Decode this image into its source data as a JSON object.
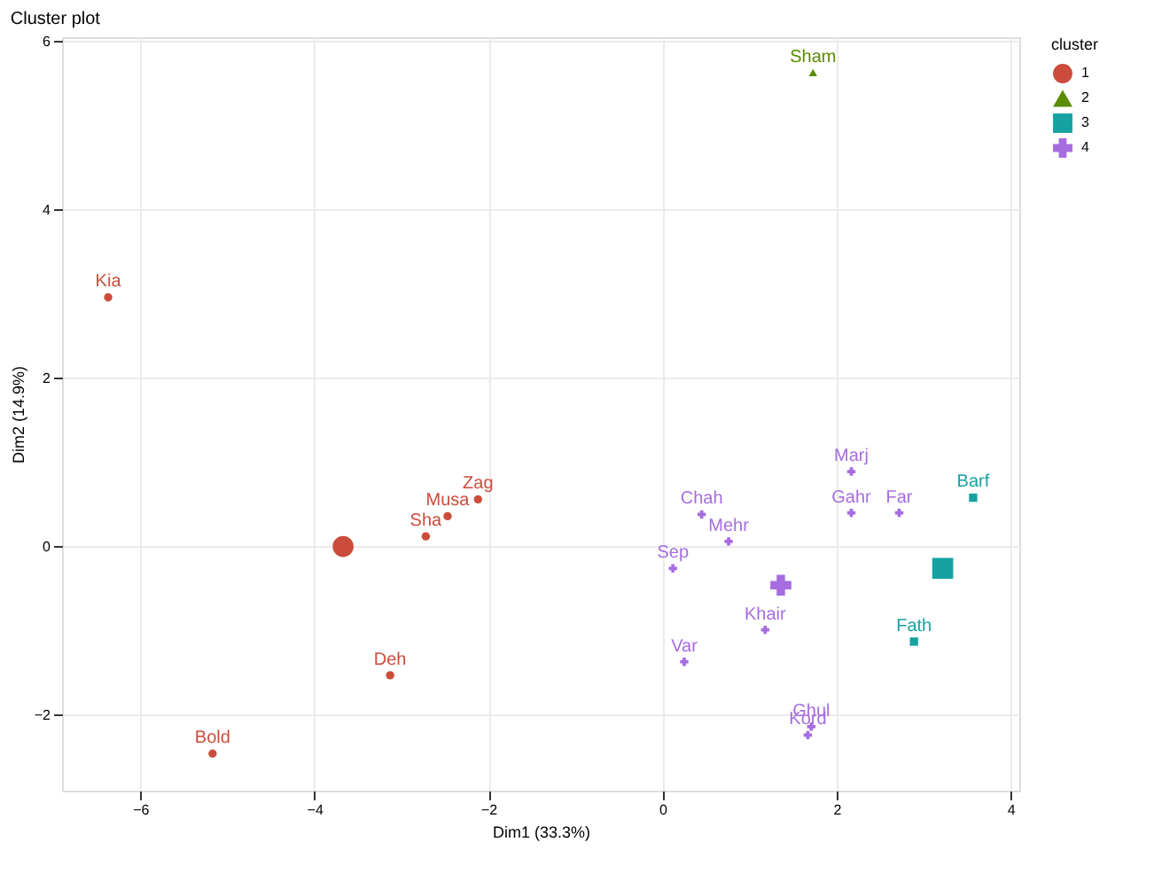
{
  "chart_data": {
    "type": "scatter",
    "title": "Cluster plot",
    "xlabel": "Dim1 (33.3%)",
    "ylabel": "Dim2 (14.9%)",
    "legend_title": "cluster",
    "legend": "right",
    "grid": true,
    "xlim": [
      -6.9,
      4.1
    ],
    "ylim": [
      -2.9,
      6.05
    ],
    "xticks": [
      -6,
      -4,
      -2,
      0,
      2,
      4
    ],
    "yticks": [
      -2,
      0,
      2,
      4,
      6
    ],
    "series": [
      {
        "name": "1",
        "color": "#cc4c3c",
        "marker": "circle",
        "x": [
          -6.37,
          -5.17,
          -3.13,
          -2.72,
          -2.47,
          -2.12
        ],
        "values": [
          2.96,
          -2.46,
          -1.53,
          0.12,
          0.36,
          0.56
        ],
        "value_labels": [
          "Kia",
          "Bold",
          "Deh",
          "Sha",
          "Musa",
          "Zag"
        ]
      },
      {
        "name": "2",
        "color": "#5b8c00",
        "marker": "triangle",
        "x": [
          1.73
        ],
        "values": [
          5.63
        ],
        "value_labels": [
          "Sham"
        ]
      },
      {
        "name": "3",
        "color": "#17a2a2",
        "marker": "square",
        "x": [
          3.57,
          2.89
        ],
        "values": [
          0.58,
          -1.13
        ],
        "value_labels": [
          "Barf",
          "Fath"
        ]
      },
      {
        "name": "4",
        "color": "#a66ce0",
        "marker": "cross",
        "x": [
          2.17,
          2.17,
          2.72,
          0.45,
          0.76,
          0.12,
          1.18,
          0.25,
          1.71,
          1.67
        ],
        "values": [
          0.89,
          0.4,
          0.4,
          0.38,
          0.06,
          -0.26,
          -0.99,
          -1.37,
          -2.14,
          -2.24
        ],
        "value_labels": [
          "Marj",
          "Gahr",
          "Far",
          "Chah",
          "Mehr",
          "Sep",
          "Khair",
          "Var",
          "Ghul",
          "Kord"
        ]
      },
      {
        "color": "#cc4c3c",
        "marker": "circle",
        "x": [
          -3.67
        ],
        "values": [
          0.0
        ]
      },
      {
        "color": "#17a2a2",
        "marker": "square",
        "x": [
          3.22
        ],
        "values": [
          -0.26
        ]
      },
      {
        "color": "#a66ce0",
        "marker": "cross",
        "x": [
          1.36
        ],
        "values": [
          -0.46
        ]
      }
    ]
  }
}
